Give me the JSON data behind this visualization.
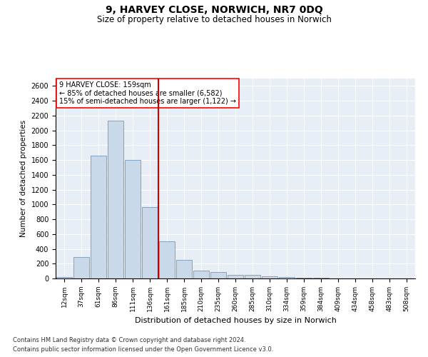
{
  "title": "9, HARVEY CLOSE, NORWICH, NR7 0DQ",
  "subtitle": "Size of property relative to detached houses in Norwich",
  "xlabel": "Distribution of detached houses by size in Norwich",
  "ylabel": "Number of detached properties",
  "footer1": "Contains HM Land Registry data © Crown copyright and database right 2024.",
  "footer2": "Contains public sector information licensed under the Open Government Licence v3.0.",
  "annotation_line1": "9 HARVEY CLOSE: 159sqm",
  "annotation_line2": "← 85% of detached houses are smaller (6,582)",
  "annotation_line3": "15% of semi-detached houses are larger (1,122) →",
  "bar_color": "#c9d9ea",
  "bar_edge_color": "#7099bb",
  "vline_color": "#cc0000",
  "categories": [
    "12sqm",
    "37sqm",
    "61sqm",
    "86sqm",
    "111sqm",
    "136sqm",
    "161sqm",
    "185sqm",
    "210sqm",
    "235sqm",
    "260sqm",
    "285sqm",
    "310sqm",
    "334sqm",
    "359sqm",
    "384sqm",
    "409sqm",
    "434sqm",
    "458sqm",
    "483sqm",
    "508sqm"
  ],
  "values": [
    20,
    290,
    1660,
    2130,
    1600,
    960,
    500,
    250,
    110,
    90,
    45,
    45,
    25,
    22,
    12,
    8,
    4,
    2,
    2,
    1,
    2
  ],
  "ylim": [
    0,
    2700
  ],
  "yticks": [
    0,
    200,
    400,
    600,
    800,
    1000,
    1200,
    1400,
    1600,
    1800,
    2000,
    2200,
    2400,
    2600
  ]
}
